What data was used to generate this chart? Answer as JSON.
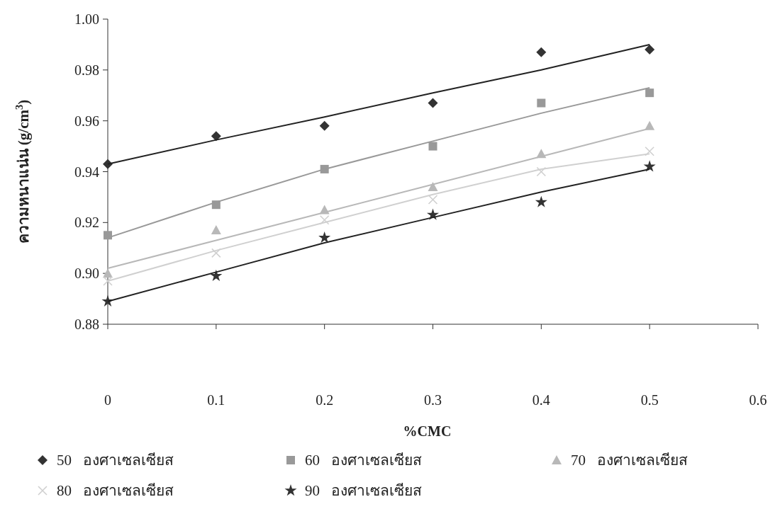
{
  "chart_data": {
    "type": "scatter",
    "xlabel": "%CMC",
    "ylabel": "ความหนาแน่น (g/cm$^{3}$)",
    "x": [
      0,
      0.1,
      0.2,
      0.3,
      0.4,
      0.5
    ],
    "series": [
      {
        "name": "50   องศาเซลเซียส",
        "color": "#333333",
        "marker": "diamond",
        "values": [
          0.943,
          0.954,
          0.958,
          0.967,
          0.987,
          0.988
        ]
      },
      {
        "name": "60   องศาเซลเซียส",
        "color": "#999999",
        "marker": "square",
        "values": [
          0.915,
          0.927,
          0.941,
          0.95,
          0.967,
          0.971
        ]
      },
      {
        "name": "70   องศาเซลเซียส",
        "color": "#b8b8b8",
        "marker": "triangle",
        "values": [
          0.9,
          0.917,
          0.925,
          0.934,
          0.947,
          0.958
        ]
      },
      {
        "name": "80   องศาเซลเซียส",
        "color": "#d0d0d0",
        "marker": "cross",
        "values": [
          0.897,
          0.908,
          0.921,
          0.929,
          0.94,
          0.948
        ]
      },
      {
        "name": "90   องศาเซลเซียส",
        "color": "#333333",
        "marker": "star",
        "values": [
          0.889,
          0.899,
          0.914,
          0.923,
          0.928,
          0.942
        ]
      },
      {
        "type": "line",
        "color": "#222222",
        "marker": "none",
        "x": [
          0,
          0.1,
          0.2,
          0.3,
          0.4,
          0.5
        ],
        "values": [
          0.943,
          0.9525,
          0.9615,
          0.971,
          0.98,
          0.99
        ]
      },
      {
        "type": "line",
        "color": "#999999",
        "marker": "none",
        "x": [
          0,
          0.1,
          0.2,
          0.3,
          0.4,
          0.5
        ],
        "values": [
          0.914,
          0.928,
          0.941,
          0.952,
          0.963,
          0.973
        ]
      },
      {
        "type": "line",
        "color": "#b8b8b8",
        "marker": "none",
        "x": [
          0,
          0.1,
          0.2,
          0.3,
          0.4,
          0.5
        ],
        "values": [
          0.902,
          0.913,
          0.924,
          0.935,
          0.946,
          0.957
        ]
      },
      {
        "type": "line",
        "color": "#d0d0d0",
        "marker": "none",
        "x": [
          0,
          0.1,
          0.2,
          0.3,
          0.4,
          0.5
        ],
        "values": [
          0.897,
          0.909,
          0.92,
          0.931,
          0.941,
          0.947
        ]
      },
      {
        "type": "line",
        "color": "#222222",
        "marker": "none",
        "x": [
          0,
          0.1,
          0.2,
          0.3,
          0.4,
          0.5
        ],
        "values": [
          0.889,
          0.9005,
          0.912,
          0.922,
          0.932,
          0.941
        ]
      }
    ],
    "xlim": [
      0,
      0.6
    ],
    "xticks": [
      0,
      0.1,
      0.2,
      0.3,
      0.4,
      0.5,
      0.6
    ],
    "ylim": [
      0.88,
      1.0
    ],
    "yticks": [
      {
        "value": 0.88,
        "label": "0.88"
      },
      {
        "value": 0.9,
        "label": "0.90"
      },
      {
        "value": 0.92,
        "label": "0.92"
      },
      {
        "value": 0.94,
        "label": "0.94"
      },
      {
        "value": 0.96,
        "label": "0.96"
      },
      {
        "value": 0.98,
        "label": "0.98"
      },
      {
        "value": 1.0,
        "label": "1.00"
      }
    ],
    "grid": false,
    "legend": "bottom"
  }
}
